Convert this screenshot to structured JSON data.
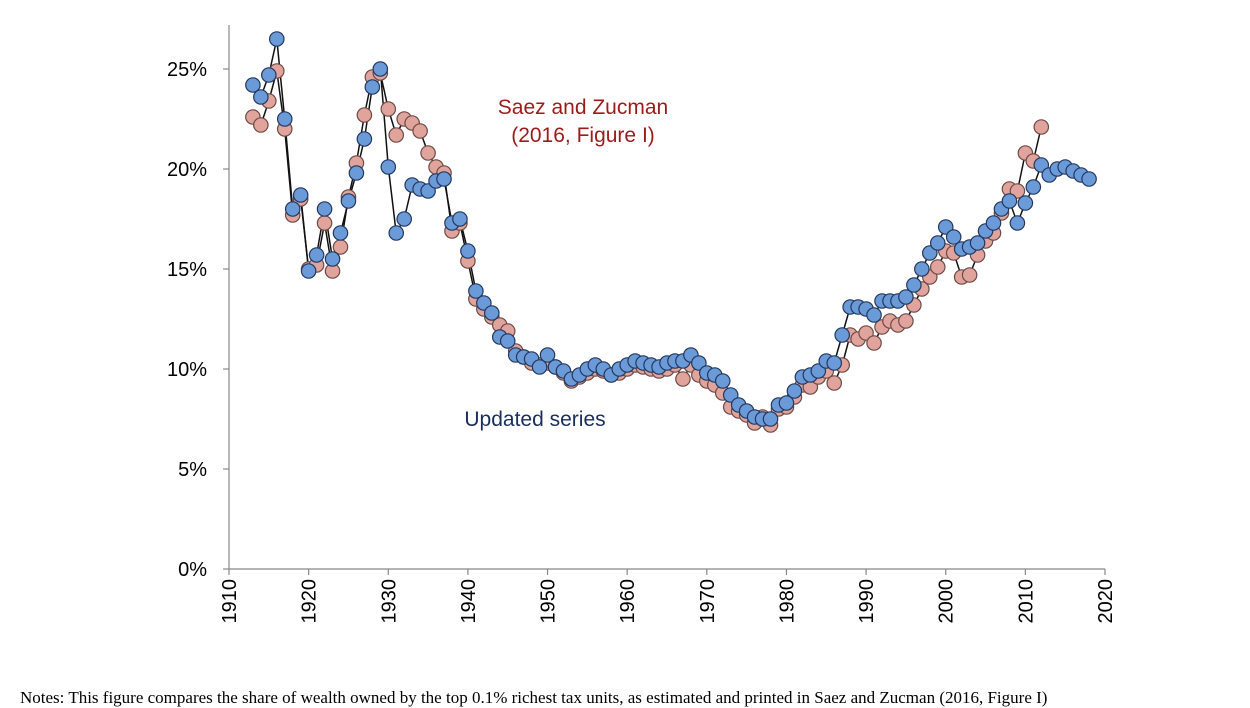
{
  "chart_data": {
    "type": "line",
    "xlim": [
      1910,
      2020
    ],
    "ylim": [
      0,
      26
    ],
    "x_ticks": [
      "1910",
      "1920",
      "1930",
      "1940",
      "1950",
      "1960",
      "1970",
      "1980",
      "1990",
      "2000",
      "2010",
      "2020"
    ],
    "y_ticks": [
      "0%",
      "5%",
      "10%",
      "15%",
      "20%",
      "25%"
    ],
    "y_tick_values": [
      0,
      5,
      10,
      15,
      20,
      25
    ],
    "x_tick_values": [
      1910,
      1920,
      1930,
      1940,
      1950,
      1960,
      1970,
      1980,
      1990,
      2000,
      2010,
      2020
    ],
    "grid": false,
    "annotations": [
      {
        "text": "Saez and Zucman",
        "series": "saez_zucman"
      },
      {
        "text": "(2016, Figure I)",
        "series": "saez_zucman"
      },
      {
        "text": "Updated series",
        "series": "updated"
      }
    ],
    "series": [
      {
        "id": "saez_zucman",
        "name": "Saez and Zucman (2016, Figure I)",
        "color": "#e0a49c",
        "x": [
          1913,
          1914,
          1915,
          1916,
          1917,
          1918,
          1919,
          1920,
          1921,
          1922,
          1923,
          1924,
          1925,
          1926,
          1927,
          1928,
          1929,
          1930,
          1931,
          1932,
          1933,
          1934,
          1935,
          1936,
          1937,
          1938,
          1939,
          1940,
          1941,
          1942,
          1943,
          1944,
          1945,
          1946,
          1947,
          1948,
          1949,
          1950,
          1951,
          1952,
          1953,
          1954,
          1955,
          1956,
          1957,
          1958,
          1959,
          1960,
          1961,
          1962,
          1963,
          1964,
          1965,
          1966,
          1967,
          1968,
          1969,
          1970,
          1971,
          1972,
          1973,
          1974,
          1975,
          1976,
          1977,
          1978,
          1979,
          1980,
          1981,
          1982,
          1983,
          1984,
          1985,
          1986,
          1987,
          1988,
          1989,
          1990,
          1991,
          1992,
          1993,
          1994,
          1995,
          1996,
          1997,
          1998,
          1999,
          2000,
          2001,
          2002,
          2003,
          2004,
          2005,
          2006,
          2007,
          2008,
          2009,
          2010,
          2011,
          2012
        ],
        "y": [
          22.6,
          22.2,
          23.4,
          24.9,
          22.0,
          17.7,
          18.5,
          15.0,
          15.2,
          17.3,
          14.9,
          16.1,
          18.6,
          20.3,
          22.7,
          24.6,
          24.8,
          23.0,
          21.7,
          22.5,
          22.3,
          21.9,
          20.8,
          20.1,
          19.8,
          16.9,
          17.3,
          15.4,
          13.5,
          13.0,
          12.6,
          12.2,
          11.9,
          10.9,
          10.6,
          10.3,
          10.2,
          10.3,
          10.1,
          9.8,
          9.4,
          9.6,
          9.8,
          10.0,
          9.9,
          9.7,
          9.8,
          10.0,
          10.2,
          10.1,
          10.0,
          9.9,
          10.0,
          10.2,
          9.5,
          10.2,
          9.7,
          9.4,
          9.2,
          8.8,
          8.1,
          7.9,
          7.7,
          7.3,
          7.6,
          7.2,
          8.0,
          8.1,
          8.6,
          9.2,
          9.1,
          9.6,
          9.9,
          9.3,
          10.2,
          11.7,
          11.5,
          11.8,
          11.3,
          12.1,
          12.4,
          12.2,
          12.4,
          13.2,
          14.0,
          14.6,
          15.1,
          15.9,
          15.8,
          14.6,
          14.7,
          15.7,
          16.4,
          16.8,
          17.8,
          19.0,
          18.9,
          20.8,
          20.4,
          22.1
        ]
      },
      {
        "id": "updated",
        "name": "Updated series",
        "color": "#6b9ad8",
        "x": [
          1913,
          1914,
          1915,
          1916,
          1917,
          1918,
          1919,
          1920,
          1921,
          1922,
          1923,
          1924,
          1925,
          1926,
          1927,
          1928,
          1929,
          1930,
          1931,
          1932,
          1933,
          1934,
          1935,
          1936,
          1937,
          1938,
          1939,
          1940,
          1941,
          1942,
          1943,
          1944,
          1945,
          1946,
          1947,
          1948,
          1949,
          1950,
          1951,
          1952,
          1953,
          1954,
          1955,
          1956,
          1957,
          1958,
          1959,
          1960,
          1961,
          1962,
          1963,
          1964,
          1965,
          1966,
          1967,
          1968,
          1969,
          1970,
          1971,
          1972,
          1973,
          1974,
          1975,
          1976,
          1977,
          1978,
          1979,
          1980,
          1981,
          1982,
          1983,
          1984,
          1985,
          1986,
          1987,
          1988,
          1989,
          1990,
          1991,
          1992,
          1993,
          1994,
          1995,
          1996,
          1997,
          1998,
          1999,
          2000,
          2001,
          2002,
          2003,
          2004,
          2005,
          2006,
          2007,
          2008,
          2009,
          2010,
          2011,
          2012,
          2013,
          2014,
          2015,
          2016,
          2017,
          2018
        ],
        "y": [
          24.2,
          23.6,
          24.7,
          26.5,
          22.5,
          18.0,
          18.7,
          14.9,
          15.7,
          18.0,
          15.5,
          16.8,
          18.4,
          19.8,
          21.5,
          24.1,
          25.0,
          20.1,
          16.8,
          17.5,
          19.2,
          19.0,
          18.9,
          19.4,
          19.5,
          17.3,
          17.5,
          15.9,
          13.9,
          13.3,
          12.8,
          11.6,
          11.4,
          10.7,
          10.6,
          10.5,
          10.1,
          10.7,
          10.1,
          9.9,
          9.5,
          9.7,
          10.0,
          10.2,
          10.0,
          9.7,
          10.0,
          10.2,
          10.4,
          10.3,
          10.2,
          10.1,
          10.3,
          10.4,
          10.4,
          10.7,
          10.3,
          9.8,
          9.7,
          9.4,
          8.7,
          8.2,
          7.9,
          7.6,
          7.5,
          7.5,
          8.2,
          8.3,
          8.9,
          9.6,
          9.7,
          9.9,
          10.4,
          10.3,
          11.7,
          13.1,
          13.1,
          13.0,
          12.7,
          13.4,
          13.4,
          13.4,
          13.6,
          14.2,
          15.0,
          15.8,
          16.3,
          17.1,
          16.6,
          16.0,
          16.1,
          16.3,
          16.9,
          17.3,
          18.0,
          18.4,
          17.3,
          18.3,
          19.1,
          20.2,
          19.7,
          20.0,
          20.1,
          19.9,
          19.7,
          19.5
        ]
      }
    ]
  },
  "notes": "Notes: This figure compares the share of wealth owned by the top 0.1% richest tax units, as estimated and printed in Saez and Zucman (2016, Figure I)"
}
